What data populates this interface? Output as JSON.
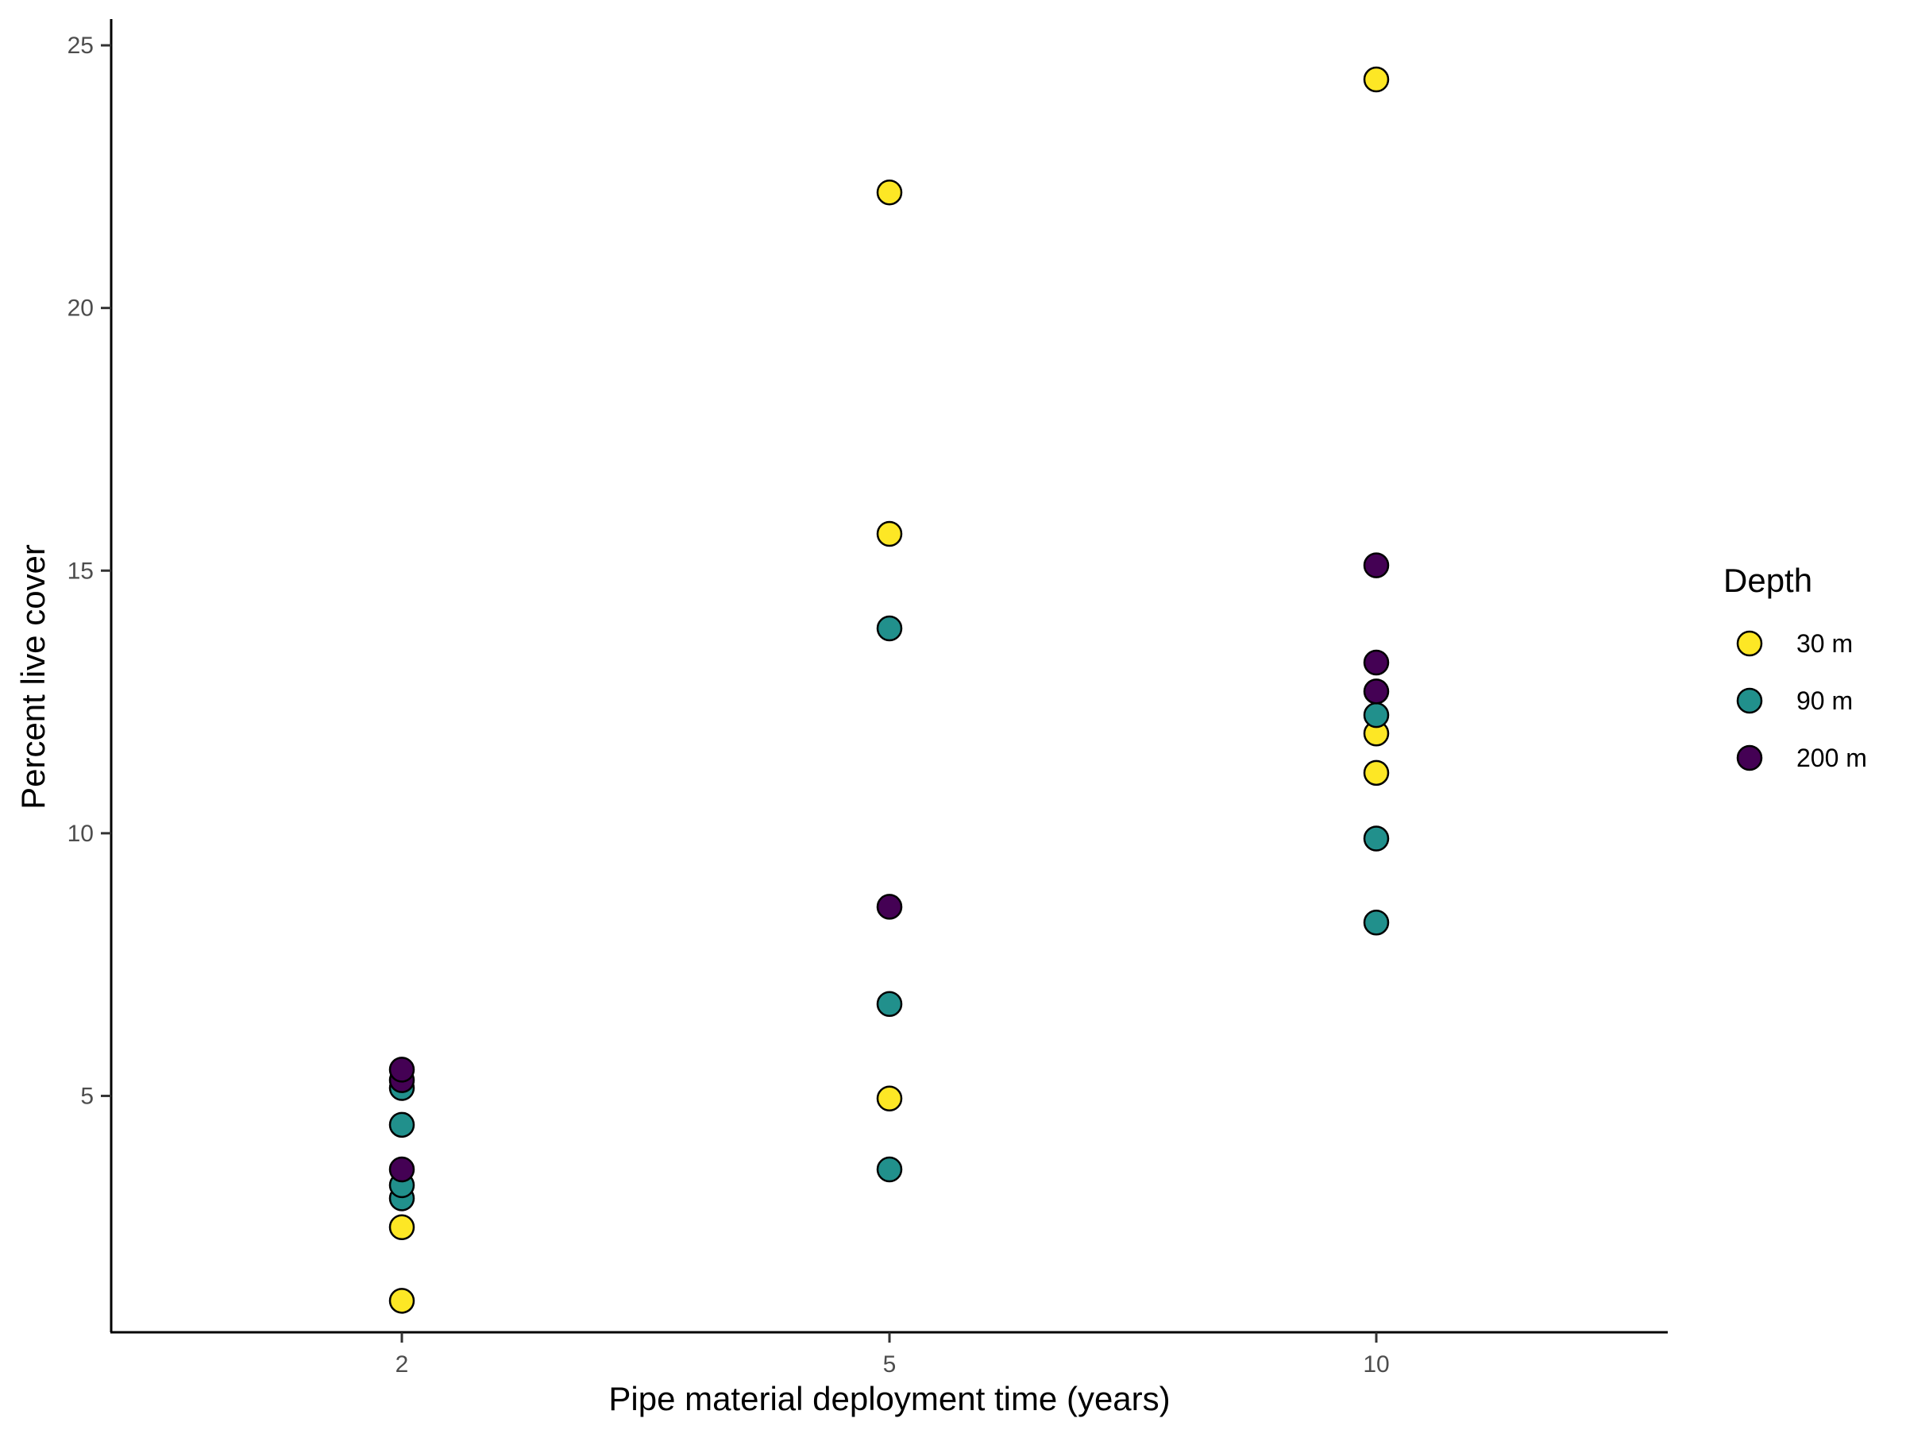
{
  "chart_data": {
    "type": "scatter",
    "xlabel": "Pipe material deployment time (years)",
    "ylabel": "Percent live cover",
    "x_categories": [
      "2",
      "5",
      "10"
    ],
    "y_ticks": [
      5,
      10,
      15,
      20,
      25
    ],
    "ylim": [
      0.5,
      25.5
    ],
    "grid": false,
    "legend": {
      "title": "Depth",
      "position": "right",
      "entries": [
        {
          "label": "30 m",
          "color": "#FDE725"
        },
        {
          "label": "90 m",
          "color": "#21908C"
        },
        {
          "label": "200 m",
          "color": "#440154"
        }
      ]
    },
    "series": [
      {
        "name": "30 m",
        "color": "#FDE725",
        "points": [
          {
            "x": "2",
            "y": 1.1
          },
          {
            "x": "2",
            "y": 2.5
          },
          {
            "x": "5",
            "y": 4.95
          },
          {
            "x": "5",
            "y": 15.7
          },
          {
            "x": "5",
            "y": 22.2
          },
          {
            "x": "10",
            "y": 11.15
          },
          {
            "x": "10",
            "y": 11.9
          },
          {
            "x": "10",
            "y": 24.35
          }
        ]
      },
      {
        "name": "90 m",
        "color": "#21908C",
        "points": [
          {
            "x": "2",
            "y": 3.05
          },
          {
            "x": "2",
            "y": 3.3
          },
          {
            "x": "2",
            "y": 4.45
          },
          {
            "x": "2",
            "y": 5.15
          },
          {
            "x": "5",
            "y": 3.6
          },
          {
            "x": "5",
            "y": 6.75
          },
          {
            "x": "5",
            "y": 13.9
          },
          {
            "x": "10",
            "y": 8.3
          },
          {
            "x": "10",
            "y": 9.9
          },
          {
            "x": "10",
            "y": 12.25
          }
        ]
      },
      {
        "name": "200 m",
        "color": "#440154",
        "points": [
          {
            "x": "2",
            "y": 3.6
          },
          {
            "x": "2",
            "y": 5.3
          },
          {
            "x": "2",
            "y": 5.5
          },
          {
            "x": "5",
            "y": 8.6
          },
          {
            "x": "10",
            "y": 12.7
          },
          {
            "x": "10",
            "y": 13.25
          },
          {
            "x": "10",
            "y": 15.1
          }
        ]
      }
    ]
  }
}
